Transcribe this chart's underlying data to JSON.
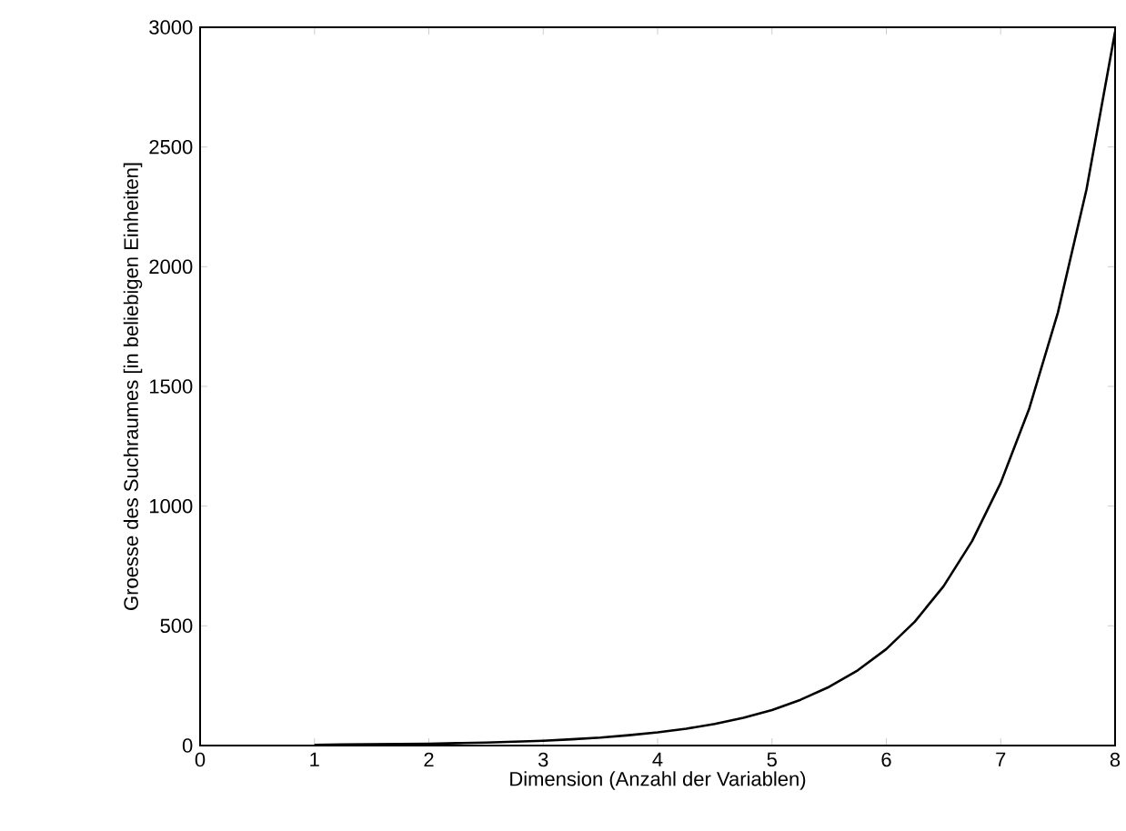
{
  "chart_data": {
    "type": "line",
    "xlabel": "Dimension (Anzahl der Variablen)",
    "ylabel": "Groesse des Suchraumes [in beliebigen Einheiten]",
    "x": [
      1,
      1.25,
      1.5,
      1.75,
      2,
      2.25,
      2.5,
      2.75,
      3,
      3.25,
      3.5,
      3.75,
      4,
      4.25,
      4.5,
      4.75,
      5,
      5.25,
      5.5,
      5.75,
      6,
      6.25,
      6.5,
      6.75,
      7,
      7.25,
      7.5,
      7.75,
      8
    ],
    "series": [
      {
        "color": "#000000",
        "values": [
          3,
          4,
          5,
          6,
          7,
          10,
          12,
          16,
          20,
          26,
          33,
          43,
          55,
          70,
          90,
          116,
          148,
          191,
          245,
          314,
          403,
          518,
          665,
          854,
          1097,
          1408,
          1808,
          2322,
          2981
        ]
      }
    ],
    "xlim": [
      0,
      8
    ],
    "xticks": [
      0,
      1,
      2,
      3,
      4,
      5,
      6,
      7,
      8
    ],
    "ylim": [
      0,
      3000
    ],
    "yticks": [
      0,
      500,
      1000,
      1500,
      2000,
      2500,
      3000
    ],
    "grid": false,
    "marker": "none",
    "line_style": "solid"
  }
}
